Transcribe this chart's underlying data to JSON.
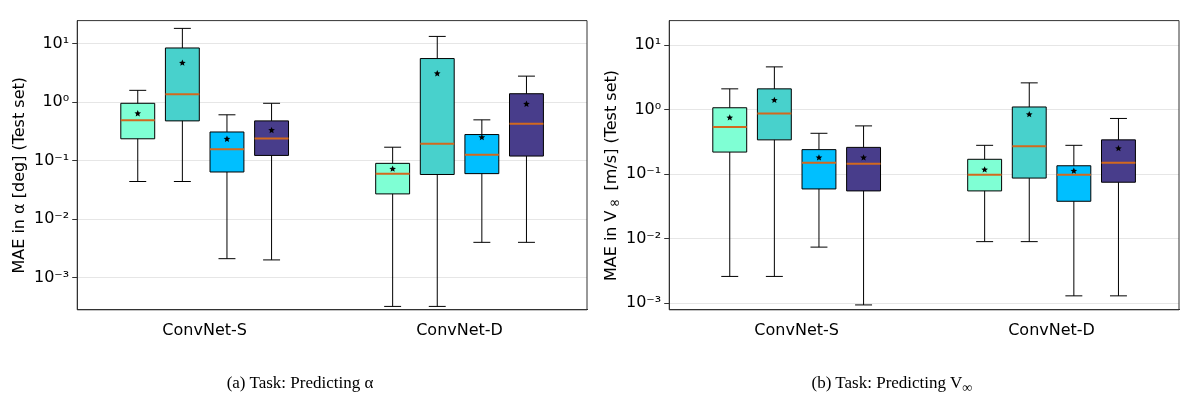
{
  "chart_data": [
    {
      "type": "box",
      "categories": [
        "ConvNet-S",
        "ConvNet-D"
      ],
      "ylabel": "MAE in α [deg] (Test set)",
      "annotations": [
        "(a) Task: Predicting α"
      ],
      "log": "y",
      "grid": "y",
      "ylim": [
        0.00028,
        25
      ],
      "yticks": [
        {
          "value": 0.001,
          "label": "10⁻³"
        },
        {
          "value": 0.01,
          "label": "10⁻²"
        },
        {
          "value": 0.1,
          "label": "10⁻¹"
        },
        {
          "value": 1,
          "label": "10⁰"
        },
        {
          "value": 10,
          "label": "10¹"
        }
      ],
      "series": [
        {
          "color": "#7fffd4",
          "boxes": [
            {
              "low": 0.044,
              "q1": 0.237,
              "median": 0.49,
              "q3": 0.96,
              "high": 1.6,
              "mean": 0.64
            },
            {
              "low": 0.00032,
              "q1": 0.027,
              "median": 0.06,
              "q3": 0.09,
              "high": 0.17,
              "mean": 0.072
            }
          ]
        },
        {
          "color": "#48d1cc",
          "boxes": [
            {
              "low": 0.044,
              "q1": 0.48,
              "median": 1.37,
              "q3": 8.5,
              "high": 18.4,
              "mean": 4.7
            },
            {
              "low": 0.00032,
              "q1": 0.058,
              "median": 0.195,
              "q3": 5.6,
              "high": 13.4,
              "mean": 3.1
            }
          ]
        },
        {
          "color": "#00bfff",
          "boxes": [
            {
              "low": 0.0021,
              "q1": 0.064,
              "median": 0.157,
              "q3": 0.31,
              "high": 0.61,
              "mean": 0.234
            },
            {
              "low": 0.004,
              "q1": 0.06,
              "median": 0.126,
              "q3": 0.28,
              "high": 0.5,
              "mean": 0.25
            }
          ]
        },
        {
          "color": "#483d8b",
          "boxes": [
            {
              "low": 0.002,
              "q1": 0.123,
              "median": 0.24,
              "q3": 0.48,
              "high": 0.96,
              "mean": 0.33
            },
            {
              "low": 0.004,
              "q1": 0.12,
              "median": 0.43,
              "q3": 1.4,
              "high": 2.8,
              "mean": 0.93
            }
          ]
        }
      ]
    },
    {
      "type": "box",
      "categories": [
        "ConvNet-S",
        "ConvNet-D"
      ],
      "ylabel": "MAE in V$_{∞}$ [m/s] (Test set)",
      "annotations": [
        "(b) Task: Predicting V$_{∞}$"
      ],
      "log": "y",
      "grid": "y",
      "ylim": [
        0.00079,
        24
      ],
      "yticks": [
        {
          "value": 0.001,
          "label": "10⁻³"
        },
        {
          "value": 0.01,
          "label": "10⁻²"
        },
        {
          "value": 0.1,
          "label": "10⁻¹"
        },
        {
          "value": 1,
          "label": "10⁰"
        },
        {
          "value": 10,
          "label": "10¹"
        }
      ],
      "series": [
        {
          "color": "#7fffd4",
          "boxes": [
            {
              "low": 0.0026,
              "q1": 0.22,
              "median": 0.54,
              "q3": 1.07,
              "high": 2.1,
              "mean": 0.75
            },
            {
              "low": 0.009,
              "q1": 0.055,
              "median": 0.098,
              "q3": 0.17,
              "high": 0.28,
              "mean": 0.117
            }
          ]
        },
        {
          "color": "#48d1cc",
          "boxes": [
            {
              "low": 0.0026,
              "q1": 0.34,
              "median": 0.87,
              "q3": 2.1,
              "high": 4.6,
              "mean": 1.4
            },
            {
              "low": 0.009,
              "q1": 0.087,
              "median": 0.27,
              "q3": 1.1,
              "high": 2.6,
              "mean": 0.84
            }
          ]
        },
        {
          "color": "#00bfff",
          "boxes": [
            {
              "low": 0.0074,
              "q1": 0.059,
              "median": 0.15,
              "q3": 0.24,
              "high": 0.43,
              "mean": 0.18
            },
            {
              "low": 0.0013,
              "q1": 0.038,
              "median": 0.098,
              "q3": 0.135,
              "high": 0.28,
              "mean": 0.112
            }
          ]
        },
        {
          "color": "#483d8b",
          "boxes": [
            {
              "low": 0.00094,
              "q1": 0.055,
              "median": 0.145,
              "q3": 0.26,
              "high": 0.56,
              "mean": 0.18
            },
            {
              "low": 0.0013,
              "q1": 0.075,
              "median": 0.15,
              "q3": 0.34,
              "high": 0.73,
              "mean": 0.25
            }
          ]
        }
      ]
    }
  ]
}
